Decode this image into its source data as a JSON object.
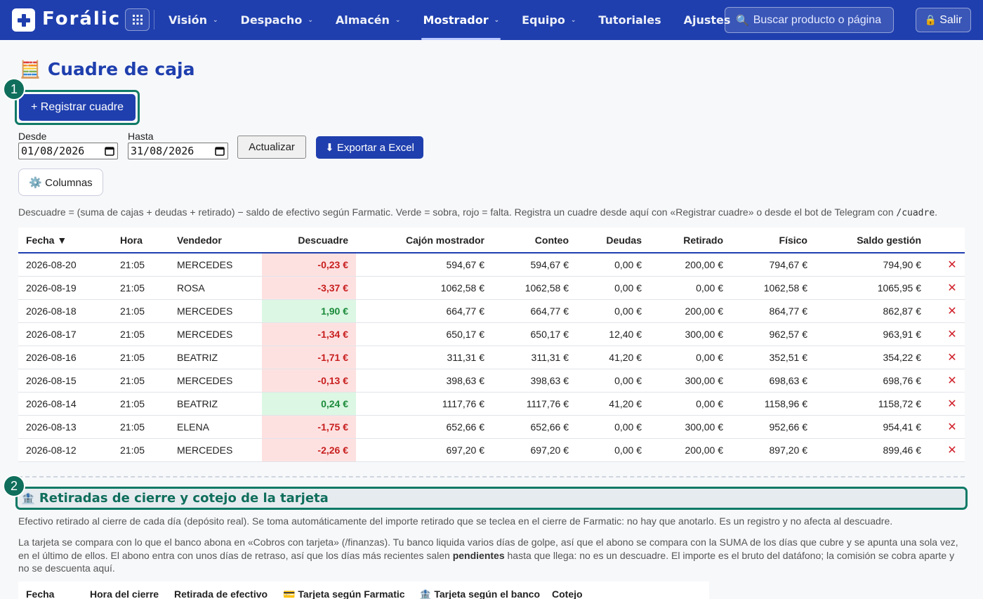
{
  "nav": {
    "logo_text": "Forálic",
    "items": [
      {
        "label": "Visión",
        "chevron": true
      },
      {
        "label": "Despacho",
        "chevron": true
      },
      {
        "label": "Almacén",
        "chevron": true
      },
      {
        "label": "Mostrador",
        "chevron": true,
        "active": true
      },
      {
        "label": "Equipo",
        "chevron": true
      },
      {
        "label": "Tutoriales",
        "chevron": false
      },
      {
        "label": "Ajustes",
        "chevron": false
      }
    ],
    "search_placeholder": "Buscar producto o página",
    "logout_label": "Salir"
  },
  "page": {
    "title": "Cuadre de caja",
    "title_icon": "abacus-icon",
    "badge1": "1",
    "badge2": "2",
    "register_button": "+ Registrar cuadre",
    "desde_label": "Desde",
    "desde_value": "01/08/2026",
    "hasta_label": "Hasta",
    "hasta_value": "31/08/2026",
    "refresh_button": "Actualizar",
    "export_button": "⬇ Exportar a Excel",
    "columns_button": "⚙️ Columnas",
    "note_text": "Descuadre = (suma de cajas + deudas + retirado) − saldo de efectivo según Farmatic. Verde = sobra, rojo = falta. Registra un cuadre desde aquí con «Registrar cuadre» o desde el bot de Telegram con ",
    "note_code": "/cuadre",
    "note_end": "."
  },
  "table": {
    "headers": {
      "fecha": "Fecha ▼",
      "hora": "Hora",
      "vendedor": "Vendedor",
      "descuadre": "Descuadre",
      "cajon": "Cajón mostrador",
      "conteo": "Conteo",
      "deudas": "Deudas",
      "retirado": "Retirado",
      "fisico": "Físico",
      "saldo": "Saldo gestión"
    },
    "rows": [
      {
        "fecha": "2026-08-20",
        "hora": "21:05",
        "vendedor": "MERCEDES",
        "descuadre": "-0,23 €",
        "sign": "neg",
        "cajon": "594,67 €",
        "conteo": "594,67 €",
        "deudas": "0,00 €",
        "retirado": "200,00 €",
        "fisico": "794,67 €",
        "saldo": "794,90 €"
      },
      {
        "fecha": "2026-08-19",
        "hora": "21:05",
        "vendedor": "ROSA",
        "descuadre": "-3,37 €",
        "sign": "neg",
        "cajon": "1062,58 €",
        "conteo": "1062,58 €",
        "deudas": "0,00 €",
        "retirado": "0,00 €",
        "fisico": "1062,58 €",
        "saldo": "1065,95 €"
      },
      {
        "fecha": "2026-08-18",
        "hora": "21:05",
        "vendedor": "MERCEDES",
        "descuadre": "1,90 €",
        "sign": "pos",
        "cajon": "664,77 €",
        "conteo": "664,77 €",
        "deudas": "0,00 €",
        "retirado": "200,00 €",
        "fisico": "864,77 €",
        "saldo": "862,87 €"
      },
      {
        "fecha": "2026-08-17",
        "hora": "21:05",
        "vendedor": "MERCEDES",
        "descuadre": "-1,34 €",
        "sign": "neg",
        "cajon": "650,17 €",
        "conteo": "650,17 €",
        "deudas": "12,40 €",
        "retirado": "300,00 €",
        "fisico": "962,57 €",
        "saldo": "963,91 €"
      },
      {
        "fecha": "2026-08-16",
        "hora": "21:05",
        "vendedor": "BEATRIZ",
        "descuadre": "-1,71 €",
        "sign": "neg",
        "cajon": "311,31 €",
        "conteo": "311,31 €",
        "deudas": "41,20 €",
        "retirado": "0,00 €",
        "fisico": "352,51 €",
        "saldo": "354,22 €"
      },
      {
        "fecha": "2026-08-15",
        "hora": "21:05",
        "vendedor": "MERCEDES",
        "descuadre": "-0,13 €",
        "sign": "neg",
        "cajon": "398,63 €",
        "conteo": "398,63 €",
        "deudas": "0,00 €",
        "retirado": "300,00 €",
        "fisico": "698,63 €",
        "saldo": "698,76 €"
      },
      {
        "fecha": "2026-08-14",
        "hora": "21:05",
        "vendedor": "BEATRIZ",
        "descuadre": "0,24 €",
        "sign": "pos",
        "cajon": "1117,76 €",
        "conteo": "1117,76 €",
        "deudas": "41,20 €",
        "retirado": "0,00 €",
        "fisico": "1158,96 €",
        "saldo": "1158,72 €"
      },
      {
        "fecha": "2026-08-13",
        "hora": "21:05",
        "vendedor": "ELENA",
        "descuadre": "-1,75 €",
        "sign": "neg",
        "cajon": "652,66 €",
        "conteo": "652,66 €",
        "deudas": "0,00 €",
        "retirado": "300,00 €",
        "fisico": "952,66 €",
        "saldo": "954,41 €"
      },
      {
        "fecha": "2026-08-12",
        "hora": "21:05",
        "vendedor": "MERCEDES",
        "descuadre": "-2,26 €",
        "sign": "neg",
        "cajon": "697,20 €",
        "conteo": "697,20 €",
        "deudas": "0,00 €",
        "retirado": "200,00 €",
        "fisico": "897,20 €",
        "saldo": "899,46 €"
      }
    ],
    "delete_glyph": "✕"
  },
  "section2": {
    "title": "Retiradas de cierre y cotejo de la tarjeta",
    "para1": "Efectivo retirado al cierre de cada día (depósito real). Se toma automáticamente del importe retirado que se teclea en el cierre de Farmatic: no hay que anotarlo. Es un registro y no afecta al descuadre.",
    "para2a": "La tarjeta se compara con lo que el banco abona en «Cobros con tarjeta» (/finanzas). Tu banco liquida varios días de golpe, así que el abono se compara con la SUMA de los días que cubre y se apunta una sola vez, en el último de ellos. El abono entra con unos días de retraso, así que los días más recientes salen ",
    "para2b": "pendientes",
    "para2c": " hasta que llega: no es un descuadre. El importe es el bruto del datáfono; la comisión se cobra aparte y no se descuenta aquí.",
    "headers": [
      "Fecha",
      "Hora del cierre",
      "Retirada de efectivo",
      "💳 Tarjeta según Farmatic",
      "🏦 Tarjeta según el banco",
      "Cotejo"
    ]
  }
}
